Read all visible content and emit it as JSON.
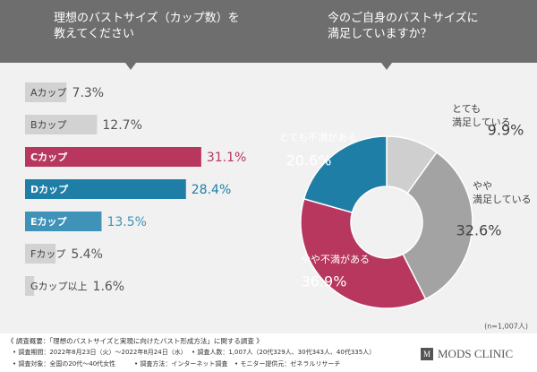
{
  "header": {
    "brand": "MODS CLINIC",
    "logo": "M"
  },
  "chart_data": [
    {
      "type": "hbar",
      "title": "理想のバストサイズ（カップ数）を\n教えてください",
      "categories": [
        "Aカップ",
        "Bカップ",
        "Cカップ",
        "Dカップ",
        "Eカップ",
        "Fカップ",
        "Gカップ以上"
      ],
      "values": [
        7.3,
        12.7,
        31.1,
        28.4,
        13.5,
        5.4,
        1.6
      ],
      "value_labels": [
        "7.3%",
        "12.7%",
        "31.1%",
        "28.4%",
        "13.5%",
        "5.4%",
        "1.6%"
      ],
      "colors": [
        "#d2d2d2",
        "#d2d2d2",
        "#b7375f",
        "#1f7ea6",
        "#3f93b8",
        "#d2d2d2",
        "#d2d2d2"
      ]
    },
    {
      "type": "donut",
      "title": "今のご自身のバストサイズに\n満足していますか？",
      "categories": [
        "とても\n満足している",
        "やや\n満足している",
        "やや不満がある",
        "とても不満がある"
      ],
      "values": [
        9.9,
        32.6,
        36.9,
        20.6
      ],
      "value_labels": [
        "9.9%",
        "32.6%",
        "36.9%",
        "20.6%"
      ],
      "colors": [
        "#cfcfcf",
        "#a3a3a3",
        "#b7375f",
        "#1f7ea6"
      ],
      "note": "(n=1,007人)"
    }
  ],
  "footer": {
    "heading": "《 調査概要：「理想のバストサイズと実現に向けたバスト形成方法」に関する調査 》",
    "items": [
      "• 調査期間：2022年8月23日（火）～2022年8月24日（水）",
      "• 調査人数：1,007人（20代329人、30代343人、40代335人）",
      "• 調査対象：全国の20代〜40代女性",
      "• 調査方法：インターネット調査",
      "• モニター提供元：ゼネラルリサーチ"
    ]
  }
}
